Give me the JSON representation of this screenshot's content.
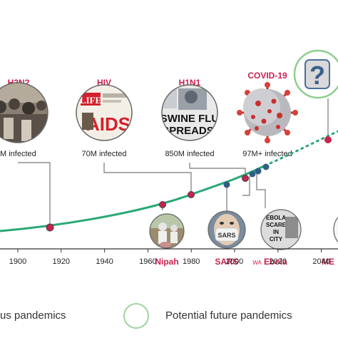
{
  "timeline": {
    "ticks": [
      "1900",
      "1920",
      "1940",
      "1960",
      "1980",
      "2000",
      "2020",
      "2040"
    ]
  },
  "pandemics_top": [
    {
      "name": "H3N2",
      "infected": "M infected"
    },
    {
      "name": "HIV",
      "infected": "70M infected",
      "image_text": [
        "LIFE",
        "AIDS"
      ]
    },
    {
      "name": "H1N1",
      "infected": "850M infected",
      "image_text": [
        "SWINE FLU",
        "SPREADS!"
      ]
    },
    {
      "name": "COVID-19",
      "infected": "97M+ infected"
    }
  ],
  "future": {
    "symbol": "?"
  },
  "pandemics_bottom": [
    {
      "name": "Nipah"
    },
    {
      "name": "SARS",
      "image_text": "SARS"
    },
    {
      "name": "Ebola",
      "prefix": "WA",
      "image_text": [
        "EBOLA",
        "SCARE",
        "IN",
        "CITY"
      ]
    },
    {
      "name": "ME"
    }
  ],
  "legend": {
    "past_label": "us pandemics",
    "future_label": "Potential future pandemics"
  },
  "colors": {
    "title_red": "#cc1f4e",
    "curve": "#2aa876",
    "past_dot": "#c8234f",
    "recent_dot": "#2f5f86",
    "leader": "#777777",
    "ring_past": "#666666",
    "ring_future": "#9ed39e"
  }
}
